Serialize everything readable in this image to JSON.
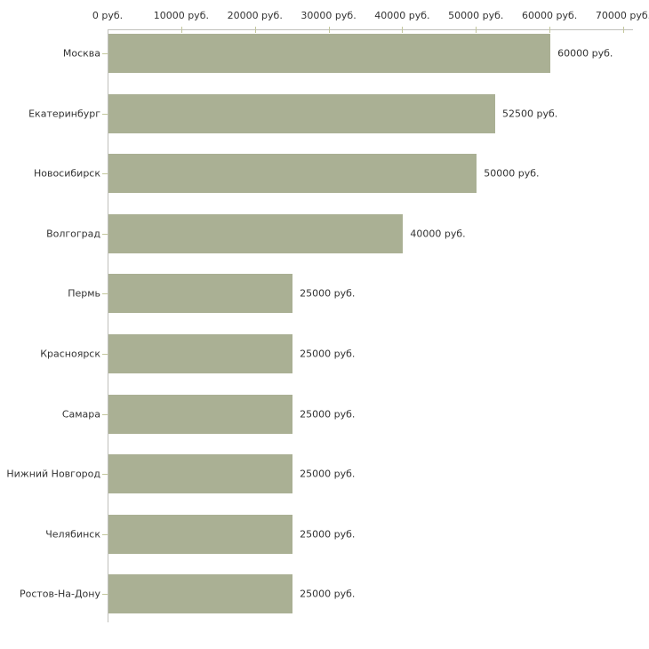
{
  "chart_data": {
    "type": "bar",
    "orientation": "horizontal",
    "title": "",
    "xlabel": "",
    "ylabel": "",
    "unit_suffix": " руб.",
    "categories": [
      "Москва",
      "Екатеринбург",
      "Новосибирск",
      "Волгоград",
      "Пермь",
      "Красноярск",
      "Самара",
      "Нижний Новгород",
      "Челябинск",
      "Ростов-На-Дону"
    ],
    "values": [
      60000,
      52500,
      50000,
      40000,
      25000,
      25000,
      25000,
      25000,
      25000,
      25000
    ],
    "value_labels": [
      "60000 руб.",
      "52500 руб.",
      "50000 руб.",
      "40000 руб.",
      "25000 руб.",
      "25000 руб.",
      "25000 руб.",
      "25000 руб.",
      "25000 руб.",
      "25000 руб."
    ],
    "x_ticks": [
      0,
      10000,
      20000,
      30000,
      40000,
      50000,
      60000,
      70000
    ],
    "x_tick_labels": [
      "0 руб.",
      "10000 руб.",
      "20000 руб.",
      "30000 руб.",
      "40000 руб.",
      "50000 руб.",
      "60000 руб.",
      "70000 руб."
    ],
    "xlim": [
      0,
      70000
    ],
    "grid": false,
    "legend": null,
    "colors": {
      "bar_fill": "#aab094",
      "axis_line": "#c0c0bb",
      "tick_mark": "#c3c79c",
      "text": "#333333",
      "background": "#ffffff"
    }
  }
}
